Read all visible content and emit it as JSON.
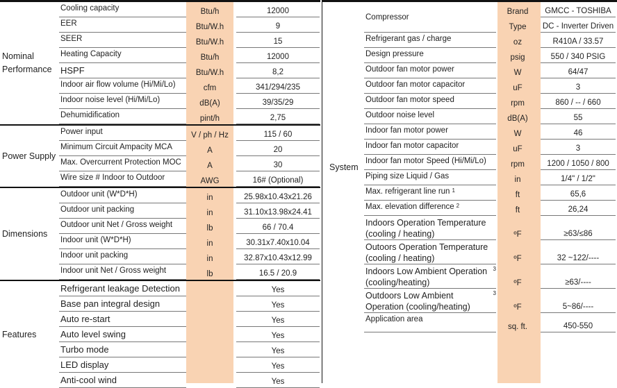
{
  "accent_color": "#f9d3b3",
  "left": {
    "groups": [
      {
        "label": "Nominal Performance",
        "rows": [
          {
            "item": "Cooling capacity",
            "unit": "Btu/h",
            "value": "12000"
          },
          {
            "item": "EER",
            "unit": "Btu/W.h",
            "value": "9"
          },
          {
            "item": "SEER",
            "unit": "Btu/W.h",
            "value": "15"
          },
          {
            "item": "Heating Capacity",
            "unit": "Btu/h",
            "value": "12000"
          },
          {
            "item": "HSPF",
            "unit": "Btu/W.h",
            "value": "8,2"
          },
          {
            "item": "Indoor air flow volume (Hi/Mi/Lo)",
            "unit": "cfm",
            "value": "341/294/235"
          },
          {
            "item": "Indoor noise level (Hi/Mi/Lo)",
            "unit": "dB(A)",
            "value": "39/35/29"
          },
          {
            "item": "Dehumidification",
            "unit": "pint/h",
            "value": "2,75"
          }
        ]
      },
      {
        "label": "Power Supply",
        "rows": [
          {
            "item": "Power input",
            "unit": "V / ph / Hz",
            "value": "115 / 60"
          },
          {
            "item": "Minimum Circuit Ampacity MCA",
            "unit": "A",
            "value": "20"
          },
          {
            "item": "Max. Overcurrent Protection MOC",
            "unit": "A",
            "value": "30"
          },
          {
            "item": "Wire size # Indoor to Outdoor",
            "unit": "AWG",
            "value": "16# (Optional)"
          }
        ]
      },
      {
        "label": "Dimensions",
        "rows": [
          {
            "item": "Outdoor unit (W*D*H)",
            "unit": "in",
            "value": "25.98x10.43x21.26"
          },
          {
            "item": "Outdoor unit packing",
            "unit": "in",
            "value": "31.10x13.98x24.41"
          },
          {
            "item": "Outdoor unit Net / Gross weight",
            "unit": "lb",
            "value": "66 / 70.4"
          },
          {
            "item": "Indoor unit  (W*D*H)",
            "unit": "in",
            "value": "30.31x7.40x10.04"
          },
          {
            "item": "Indoor unit packing",
            "unit": "in",
            "value": "32.87x10.43x12.99"
          },
          {
            "item": "Indoor unit Net / Gross weight",
            "unit": "lb",
            "value": "16.5 / 20.9"
          }
        ]
      },
      {
        "label": "Features",
        "rows": [
          {
            "item": "Refrigerant leakage Detection",
            "unit": "",
            "value": "Yes"
          },
          {
            "item": "Base pan integral design",
            "unit": "",
            "value": "Yes"
          },
          {
            "item": "Auto re-start",
            "unit": "",
            "value": "Yes"
          },
          {
            "item": "Auto level swing",
            "unit": "",
            "value": "Yes"
          },
          {
            "item": "Turbo mode",
            "unit": "",
            "value": "Yes"
          },
          {
            "item": "LED display",
            "unit": "",
            "value": "Yes"
          },
          {
            "item": "Anti-cool wind",
            "unit": "",
            "value": "Yes"
          }
        ]
      }
    ]
  },
  "right": {
    "label": "System",
    "compressor": {
      "item": "Compressor",
      "subrows": [
        {
          "unit": "Brand",
          "value": "GMCC - TOSHIBA"
        },
        {
          "unit": "Type",
          "value": "DC - Inverter Driven"
        }
      ]
    },
    "rows": [
      {
        "item": "Refrigerant gas / charge",
        "unit": "oz",
        "value": "R410A / 33.57"
      },
      {
        "item": "Design pressure",
        "unit": "psig",
        "value": "550 / 340 PSIG"
      },
      {
        "item": "Outdoor fan motor power",
        "unit": "W",
        "value": "64/47"
      },
      {
        "item": "Outdoor fan motor capacitor",
        "unit": "uF",
        "value": "3"
      },
      {
        "item": "Outdoor fan motor speed",
        "unit": "rpm",
        "value": "860 / -- / 660"
      },
      {
        "item": "Outdoor noise level",
        "unit": "dB(A)",
        "value": "55"
      },
      {
        "item": "Indoor fan motor power",
        "unit": "W",
        "value": "46"
      },
      {
        "item": "Indoor fan motor capacitor",
        "unit": "uF",
        "value": "3"
      },
      {
        "item": "Indoor fan motor Speed (Hi/Mi/Lo)",
        "unit": "rpm",
        "value": "1200 / 1050 / 800"
      },
      {
        "item": "Piping size Liquid / Gas",
        "unit": "in",
        "value": "1/4\" / 1/2\""
      },
      {
        "item": "Max. refrigerant line run",
        "sup": "1",
        "unit": "ft",
        "value": "65,6"
      },
      {
        "item": "Max. elevation difference",
        "sup": "2",
        "unit": "ft",
        "value": "26,24"
      },
      {
        "item": "Indoors Operation Temperature (cooling / heating)",
        "unit": "ºF",
        "value": "≥63/≤86",
        "tall": true
      },
      {
        "item": "Outoors Operation Temperature (cooling / heating)",
        "unit": "ºF",
        "value": "32 ~122/----",
        "tall": true
      },
      {
        "item": "Indoors Low Ambient Operation (cooling/heating)",
        "sup": "3",
        "unit": "ºF",
        "value": "≥63/----",
        "tall": true
      },
      {
        "item": "Outdoors Low Ambient Operation (cooling/heating)",
        "sup": "3",
        "unit": "ºF",
        "value": "5~86/----",
        "tall": true
      },
      {
        "item": "Application area",
        "unit": "sq. ft.",
        "value": "450-550"
      }
    ]
  }
}
